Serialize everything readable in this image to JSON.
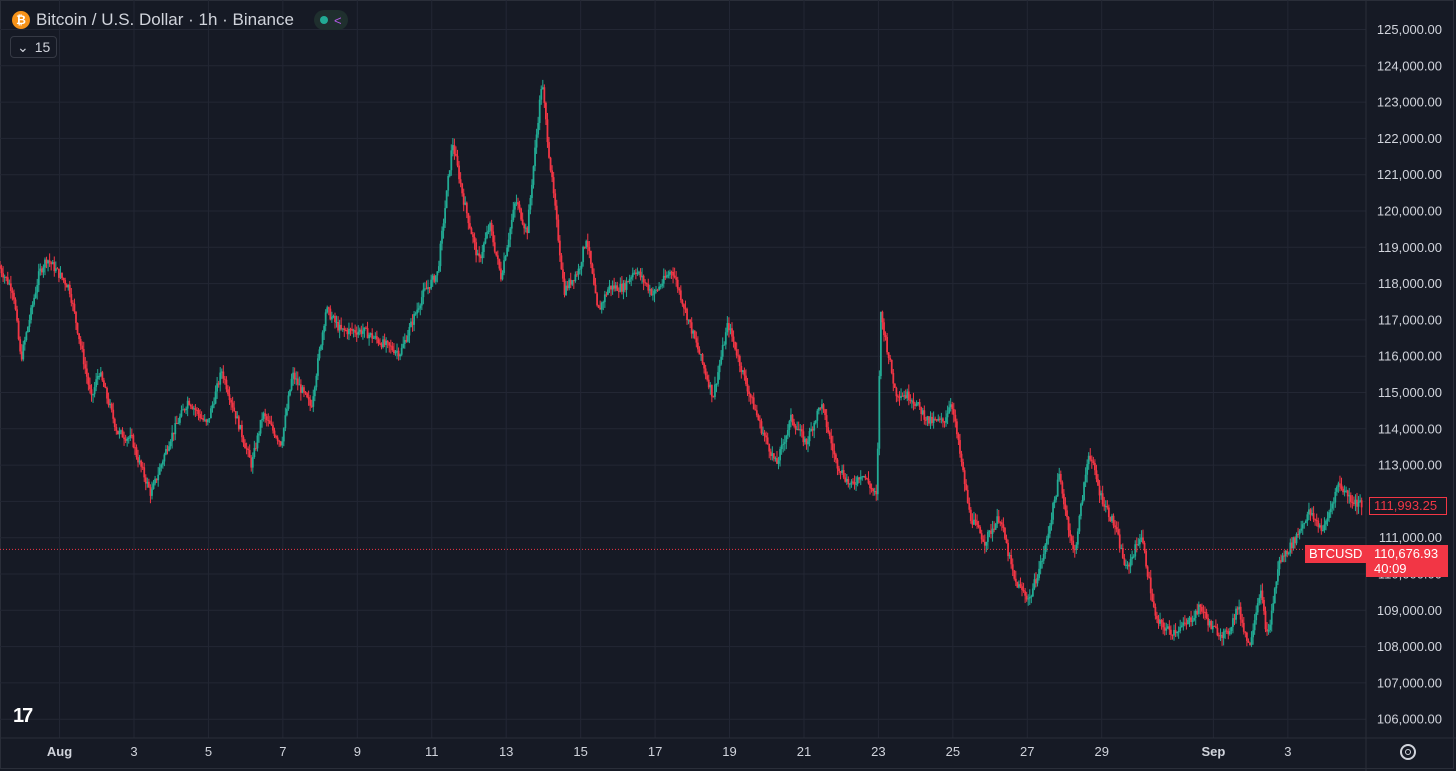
{
  "header": {
    "coin_icon": "bitcoin-icon",
    "title": "Bitcoin / U.S. Dollar · 1h · Binance",
    "status_icon": "market-open-dot",
    "share_icon": "share-icon"
  },
  "interval_button": {
    "icon": "chevron-down-icon",
    "label": "15"
  },
  "logo": "TV",
  "price_tags": {
    "high_value": "111,993.25",
    "symbol": "BTCUSD",
    "last_value": "110,676.93",
    "countdown": "40:09"
  },
  "colors": {
    "up": "#22ab94",
    "down": "#f23645",
    "grid": "#232734",
    "background": "#161a25"
  },
  "chart_data": {
    "type": "candlestick",
    "title": "Bitcoin / U.S. Dollar · 1h · Binance",
    "ylim": [
      105700,
      125400
    ],
    "y_ticks": [
      106000,
      107000,
      108000,
      109000,
      110000,
      111000,
      112000,
      113000,
      114000,
      115000,
      116000,
      117000,
      118000,
      119000,
      120000,
      121000,
      122000,
      123000,
      124000,
      125000
    ],
    "y_tick_labels": [
      "106,000.00",
      "107,000.00",
      "108,000.00",
      "109,000.00",
      "110,000.00",
      "111,000.00",
      "112,000.00",
      "113,000.00",
      "114,000.00",
      "115,000.00",
      "116,000.00",
      "117,000.00",
      "118,000.00",
      "119,000.00",
      "120,000.00",
      "121,000.00",
      "122,000.00",
      "123,000.00",
      "124,000.00",
      "125,000.00"
    ],
    "x_tick_labels": [
      "Aug",
      "3",
      "5",
      "7",
      "9",
      "11",
      "13",
      "15",
      "17",
      "19",
      "21",
      "23",
      "25",
      "27",
      "29",
      "Sep",
      "3"
    ],
    "x_tick_days": [
      0,
      2,
      4,
      6,
      8,
      10,
      12,
      14,
      16,
      18,
      20,
      22,
      24,
      26,
      28,
      31,
      33
    ],
    "x_range_days": [
      -1.6,
      35.1
    ],
    "last_price": 110676.93,
    "high_marker": 111993.25,
    "price_path_days": [
      -1.6,
      -1.2,
      -1.0,
      -0.5,
      -0.3,
      0.3,
      0.9,
      1.1,
      1.6,
      2.0,
      2.1,
      2.5,
      3.0,
      3.5,
      4.0,
      4.4,
      4.8,
      5.2,
      5.5,
      6.0,
      6.3,
      6.8,
      7.2,
      7.6,
      8.2,
      8.8,
      9.2,
      9.8,
      10.2,
      10.6,
      10.9,
      11.3,
      11.6,
      11.9,
      12.3,
      12.6,
      13.0,
      13.2,
      13.6,
      14.0,
      14.2,
      14.5,
      14.8,
      15.2,
      15.5,
      16.0,
      16.5,
      17.0,
      17.6,
      18.0,
      18.5,
      18.9,
      19.3,
      19.7,
      20.1,
      20.5,
      20.9,
      21.3,
      21.6,
      22.0,
      22.1,
      22.5,
      22.9,
      23.4,
      23.8,
      24.0,
      24.5,
      24.9,
      25.3,
      25.7,
      26.1,
      26.5,
      26.9,
      27.3,
      27.7,
      28.0,
      28.4,
      28.7,
      29.1,
      29.5,
      29.9,
      30.3,
      30.7,
      31.0,
      31.4,
      31.7,
      32.0,
      32.3,
      32.5,
      32.8,
      33.2,
      33.6,
      34.0,
      34.4,
      34.8,
      35.1
    ],
    "price_path_values": [
      118500,
      117800,
      115900,
      118300,
      118700,
      117900,
      114800,
      115600,
      113900,
      113700,
      113300,
      112200,
      113700,
      114800,
      114100,
      115600,
      114300,
      113000,
      114400,
      113600,
      115500,
      114600,
      117300,
      116700,
      116700,
      116300,
      116100,
      117700,
      118300,
      121900,
      120300,
      118600,
      119600,
      118200,
      120300,
      119400,
      123600,
      121500,
      117800,
      118400,
      119300,
      117200,
      117900,
      117900,
      118400,
      117700,
      118400,
      116800,
      114900,
      116900,
      115200,
      114000,
      113000,
      114300,
      113600,
      114700,
      113100,
      112400,
      112800,
      112100,
      117200,
      115000,
      114900,
      114200,
      114200,
      114800,
      111600,
      110900,
      111600,
      109800,
      109300,
      110600,
      112700,
      110500,
      113400,
      112200,
      111300,
      110100,
      111100,
      108700,
      108400,
      108600,
      109100,
      108500,
      108300,
      109100,
      108000,
      109600,
      108200,
      110300,
      110900,
      111700,
      111200,
      112500,
      112000,
      111900
    ]
  }
}
